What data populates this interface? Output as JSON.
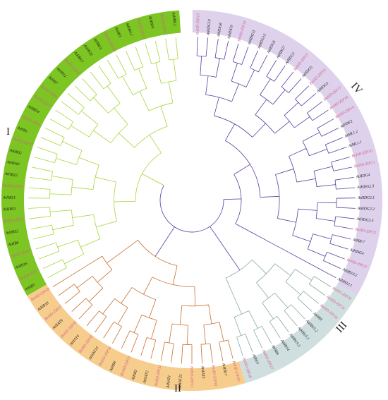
{
  "clade_labels": {
    "I": "I",
    "II": "II",
    "III": "III",
    "IV": "IV"
  },
  "colors": {
    "clade_I_band": "#7cc522",
    "clade_I_branch": "#a7d63a",
    "clade_II_band": "#f6cd8c",
    "clade_II_branch": "#c8702f",
    "clade_III_band": "#cfdfe0",
    "clade_III_branch": "#8aa7a8",
    "clade_IV_band": "#ddd1ec",
    "clade_IV_branch": "#5b3c9e",
    "root_branch": "#6c4bb0",
    "label_pink": "#d45f8a",
    "label_black": "#1a1a1a"
  },
  "clades": [
    {
      "key": "IV",
      "leaves": [
        {
          "name": "BnHD-ZIP13",
          "pink": true
        },
        {
          "name": "AtHDG10",
          "pink": false
        },
        {
          "name": "AtHDG8",
          "pink": false
        },
        {
          "name": "AtHDG9",
          "pink": false
        },
        {
          "name": "BnHD-ZIP14",
          "pink": true
        },
        {
          "name": "AtHDG11",
          "pink": false
        },
        {
          "name": "AtHDG12",
          "pink": false
        },
        {
          "name": "AtHDG6",
          "pink": false
        },
        {
          "name": "AtHDG7",
          "pink": false
        },
        {
          "name": "AtHDG1",
          "pink": false
        },
        {
          "name": "BnHD-ZIP15",
          "pink": true
        },
        {
          "name": "AtHDG5",
          "pink": false
        },
        {
          "name": "BnHD-ZIP16",
          "pink": true
        },
        {
          "name": "AtHDG3",
          "pink": false
        },
        {
          "name": "BnHD-ZIP17",
          "pink": true
        },
        {
          "name": "BnHD-ZIP18",
          "pink": true
        },
        {
          "name": "BnHD-ZIP19",
          "pink": true
        },
        {
          "name": "AtPDF2",
          "pink": false
        },
        {
          "name": "AtML1.2",
          "pink": false
        },
        {
          "name": "AtML1.1",
          "pink": false
        },
        {
          "name": "BnHD-ZIP20",
          "pink": true
        },
        {
          "name": "BnHD-ZIP21",
          "pink": true
        },
        {
          "name": "AtHDG4",
          "pink": false
        },
        {
          "name": "AtHDG2.3",
          "pink": false
        },
        {
          "name": "AtHDG2.1",
          "pink": false
        },
        {
          "name": "AtHDG2.2",
          "pink": false
        },
        {
          "name": "AtHDG2.4",
          "pink": false
        },
        {
          "name": "BnHD-ZIP22",
          "pink": true
        },
        {
          "name": "AtHB-7",
          "pink": false
        },
        {
          "name": "AtHDG4",
          "pink": false
        },
        {
          "name": "BnHD-ZIP23",
          "pink": true
        },
        {
          "name": "AtHB10.2",
          "pink": false
        },
        {
          "name": "AtHB10.1",
          "pink": false
        }
      ]
    },
    {
      "key": "III",
      "leaves": [
        {
          "name": "BnHD-ZIP24",
          "pink": true
        },
        {
          "name": "BnHD-ZIP25",
          "pink": true
        },
        {
          "name": "BnHD-ZIP26",
          "pink": true
        },
        {
          "name": "AtHB8",
          "pink": false
        },
        {
          "name": "AtHB15.2",
          "pink": false
        },
        {
          "name": "AtHB15.1",
          "pink": false
        },
        {
          "name": "AtHB15.3",
          "pink": false
        },
        {
          "name": "AtHB14",
          "pink": false
        },
        {
          "name": "AtHB9",
          "pink": false
        },
        {
          "name": "BnHD-ZIP27",
          "pink": true
        },
        {
          "name": "AtREV",
          "pink": false
        },
        {
          "name": "BnHD-ZIP28",
          "pink": true
        }
      ]
    },
    {
      "key": "II",
      "leaves": [
        {
          "name": "BnHD-ZIP29",
          "pink": true
        },
        {
          "name": "AtHB17",
          "pink": false
        },
        {
          "name": "BnHD-ZIP30",
          "pink": true
        },
        {
          "name": "AtHAT3",
          "pink": false
        },
        {
          "name": "BnHD-ZIP31",
          "pink": true
        },
        {
          "name": "AtHAT22",
          "pink": false
        },
        {
          "name": "AtHAT1",
          "pink": false
        },
        {
          "name": "BnHD-ZIP32",
          "pink": true
        },
        {
          "name": "AtHAT2",
          "pink": false
        },
        {
          "name": "AtHB2",
          "pink": false
        },
        {
          "name": "BnHD-ZIP33",
          "pink": true
        },
        {
          "name": "AtHB4",
          "pink": false
        },
        {
          "name": "BnHD-ZIP34",
          "pink": true
        },
        {
          "name": "AtHAT14",
          "pink": false
        },
        {
          "name": "BnHD-ZIP35",
          "pink": true
        },
        {
          "name": "AtHAT4",
          "pink": false
        },
        {
          "name": "BnHD-ZIP36",
          "pink": true
        },
        {
          "name": "AtHAT9",
          "pink": false
        },
        {
          "name": "BnHD-ZIP37",
          "pink": true
        },
        {
          "name": "AtHB18",
          "pink": false
        },
        {
          "name": "BnHD-ZIP38",
          "pink": true
        }
      ]
    },
    {
      "key": "I",
      "leaves": [
        {
          "name": "AtHB5",
          "pink": false
        },
        {
          "name": "BnHD-ZIP1",
          "pink": true
        },
        {
          "name": "AtHB16",
          "pink": false
        },
        {
          "name": "BnHD-ZIP2",
          "pink": true
        },
        {
          "name": "AtHB6",
          "pink": false
        },
        {
          "name": "AtHB52",
          "pink": false
        },
        {
          "name": "BnHD-ZIP3",
          "pink": true
        },
        {
          "name": "AtHB53",
          "pink": false
        },
        {
          "name": "AtHB21",
          "pink": false
        },
        {
          "name": "BnHD-ZIP4",
          "pink": true
        },
        {
          "name": "AtHB22",
          "pink": false
        },
        {
          "name": "AtHB40",
          "pink": false
        },
        {
          "name": "AtHB51",
          "pink": false
        },
        {
          "name": "BnHD-ZIP5",
          "pink": true
        },
        {
          "name": "AtHB1",
          "pink": false
        },
        {
          "name": "BnHD-ZIP6",
          "pink": true
        },
        {
          "name": "AtHB54",
          "pink": false
        },
        {
          "name": "BnHD-ZIP7",
          "pink": true
        },
        {
          "name": "BnHD-ZIP8",
          "pink": true
        },
        {
          "name": "AtHB7",
          "pink": false
        },
        {
          "name": "AtHB12",
          "pink": false
        },
        {
          "name": "BnHD-ZIP9",
          "pink": true
        },
        {
          "name": "AtHB13",
          "pink": false
        },
        {
          "name": "AtHB20",
          "pink": false
        },
        {
          "name": "AtHB23",
          "pink": false
        },
        {
          "name": "BnHD-ZIP10",
          "pink": true
        },
        {
          "name": "AtHB3",
          "pink": false
        },
        {
          "name": "AtHB4.2",
          "pink": false
        },
        {
          "name": "BnHD-ZIP11",
          "pink": true
        },
        {
          "name": "AtHB19",
          "pink": false
        },
        {
          "name": "BnHD-ZIP12",
          "pink": true
        },
        {
          "name": "AtHB9.2",
          "pink": false
        }
      ]
    }
  ]
}
